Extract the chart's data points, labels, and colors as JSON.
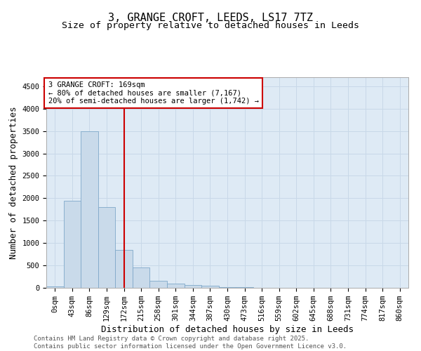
{
  "title": "3, GRANGE CROFT, LEEDS, LS17 7TZ",
  "subtitle": "Size of property relative to detached houses in Leeds",
  "xlabel": "Distribution of detached houses by size in Leeds",
  "ylabel": "Number of detached properties",
  "bin_labels": [
    "0sqm",
    "43sqm",
    "86sqm",
    "129sqm",
    "172sqm",
    "215sqm",
    "258sqm",
    "301sqm",
    "344sqm",
    "387sqm",
    "430sqm",
    "473sqm",
    "516sqm",
    "559sqm",
    "602sqm",
    "645sqm",
    "688sqm",
    "731sqm",
    "774sqm",
    "817sqm",
    "860sqm"
  ],
  "bar_values": [
    30,
    1950,
    3500,
    1800,
    850,
    450,
    160,
    100,
    60,
    40,
    20,
    10,
    0,
    0,
    0,
    0,
    0,
    0,
    0,
    0,
    0
  ],
  "bar_color": "#c9daea",
  "bar_edgecolor": "#7fa8c9",
  "redline_x": 4,
  "annotation_text": "3 GRANGE CROFT: 169sqm\n← 80% of detached houses are smaller (7,167)\n20% of semi-detached houses are larger (1,742) →",
  "annotation_box_color": "#ffffff",
  "annotation_box_edgecolor": "#cc0000",
  "redline_color": "#cc0000",
  "ylim": [
    0,
    4700
  ],
  "yticks": [
    0,
    500,
    1000,
    1500,
    2000,
    2500,
    3000,
    3500,
    4000,
    4500
  ],
  "footer_line1": "Contains HM Land Registry data © Crown copyright and database right 2025.",
  "footer_line2": "Contains public sector information licensed under the Open Government Licence v3.0.",
  "grid_color": "#c8d8e8",
  "bg_color": "#deeaf5",
  "title_fontsize": 11,
  "subtitle_fontsize": 9.5,
  "axis_label_fontsize": 9,
  "tick_fontsize": 7.5,
  "annotation_fontsize": 7.5,
  "footer_fontsize": 6.5
}
